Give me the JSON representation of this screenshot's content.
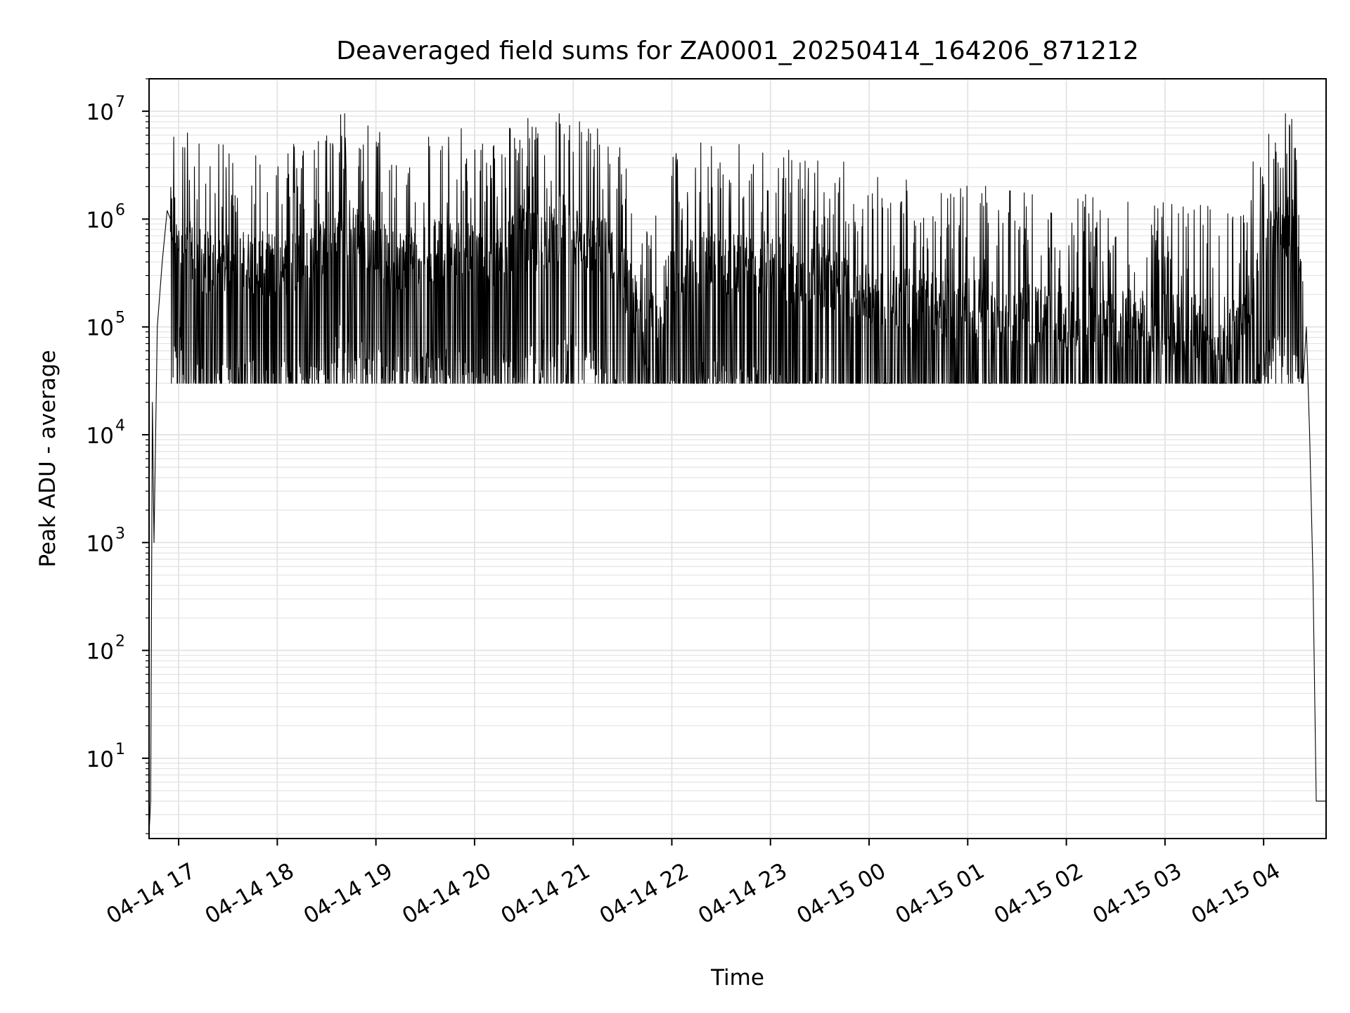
{
  "chart_data": {
    "type": "line",
    "title": "Deaveraged field sums for ZA0001_20250414_164206_871212",
    "xlabel": "Time",
    "ylabel": "Peak ADU - average",
    "x_tick_labels": [
      "04-14 17",
      "04-14 18",
      "04-14 19",
      "04-14 20",
      "04-14 21",
      "04-14 22",
      "04-14 23",
      "04-15 00",
      "04-15 01",
      "04-15 02",
      "04-15 03",
      "04-15 04"
    ],
    "y_tick_labels": [
      {
        "base": "10",
        "exp": "1"
      },
      {
        "base": "10",
        "exp": "2"
      },
      {
        "base": "10",
        "exp": "3"
      },
      {
        "base": "10",
        "exp": "4"
      },
      {
        "base": "10",
        "exp": "5"
      },
      {
        "base": "10",
        "exp": "6"
      },
      {
        "base": "10",
        "exp": "7"
      }
    ],
    "yscale": "log",
    "xlim": [
      "04-14 16:42",
      "04-15 04:38"
    ],
    "ylim": [
      1.8,
      20000000
    ],
    "grid": true,
    "line_color": "#000000",
    "grid_color": "#e3e3e3",
    "series": [
      {
        "x": [
          "04-14 16:42",
          "04-14 16:43",
          "04-14 16:44",
          "04-14 16:45",
          "04-14 16:47",
          "04-14 16:50",
          "04-14 16:53",
          "04-14 16:55",
          "04-14 17:00",
          "04-14 17:05",
          "04-14 17:15",
          "04-14 17:25",
          "04-14 17:40",
          "04-14 17:55",
          "04-14 18:10",
          "04-14 18:25",
          "04-14 18:40",
          "04-14 18:55",
          "04-14 19:10",
          "04-14 19:25",
          "04-14 19:40",
          "04-14 19:55",
          "04-14 20:10",
          "04-14 20:25",
          "04-14 20:40",
          "04-14 20:55",
          "04-14 21:10",
          "04-14 21:25",
          "04-14 21:35",
          "04-14 21:45",
          "04-14 22:00",
          "04-14 22:15",
          "04-14 22:30",
          "04-14 22:45",
          "04-14 23:00",
          "04-14 23:15",
          "04-14 23:30",
          "04-14 23:45",
          "04-15 00:00",
          "04-15 00:15",
          "04-15 00:30",
          "04-15 00:45",
          "04-15 01:00",
          "04-15 01:15",
          "04-15 01:30",
          "04-15 01:45",
          "04-15 02:00",
          "04-15 02:15",
          "04-15 02:30",
          "04-15 02:45",
          "04-15 03:00",
          "04-15 03:15",
          "04-15 03:30",
          "04-15 03:45",
          "04-15 03:55",
          "04-15 04:05",
          "04-15 04:15",
          "04-15 04:22",
          "04-15 04:26",
          "04-15 04:28",
          "04-15 04:30",
          "04-15 04:32",
          "04-15 04:38"
        ],
        "y": [
          2,
          4,
          20000,
          1000,
          100000,
          400000,
          1200000,
          1000000,
          900000,
          500000,
          400000,
          350000,
          400000,
          380000,
          400000,
          450000,
          900000,
          600000,
          400000,
          500000,
          500000,
          500000,
          400000,
          700000,
          600000,
          900000,
          600000,
          500000,
          200000,
          80000,
          300000,
          400000,
          400000,
          350000,
          400000,
          300000,
          300000,
          250000,
          200000,
          200000,
          180000,
          150000,
          150000,
          140000,
          130000,
          130000,
          120000,
          120000,
          120000,
          110000,
          110000,
          100000,
          100000,
          90000,
          300000,
          800000,
          900000,
          600000,
          100000,
          10000,
          500,
          4,
          4
        ]
      }
    ]
  }
}
